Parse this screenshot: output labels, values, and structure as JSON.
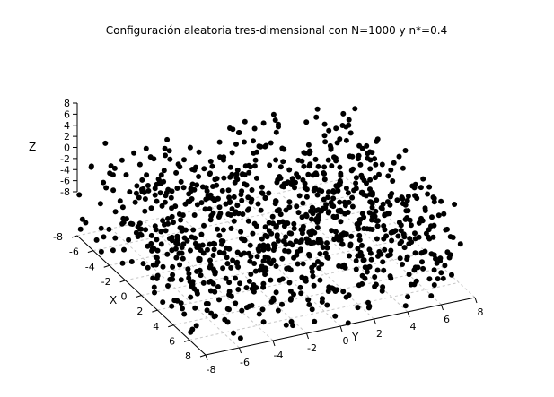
{
  "chart_data": {
    "type": "scatter",
    "title": "Configuración aleatoria tres-dimensional con N=1000 y n*=0.4",
    "xlabel": "X",
    "ylabel": "Y",
    "zlabel": "Z",
    "xlim": [
      -8,
      8
    ],
    "ylim": [
      -8,
      8
    ],
    "zlim": [
      -8,
      8
    ],
    "x_ticks": [
      "-8",
      "-6",
      "-4",
      "-2",
      "0",
      "2",
      "4",
      "6",
      "8"
    ],
    "y_ticks": [
      "-8",
      "-6",
      "-4",
      "-2",
      "0",
      "2",
      "4",
      "6",
      "8"
    ],
    "z_ticks": [
      "8",
      "6",
      "4",
      "2",
      "0",
      "-2",
      "-4",
      "-6",
      "-8"
    ],
    "grid": true,
    "n_points": 1000,
    "density": 0.4,
    "point_color": "#000000",
    "grid_color": "#c8c8c8"
  }
}
